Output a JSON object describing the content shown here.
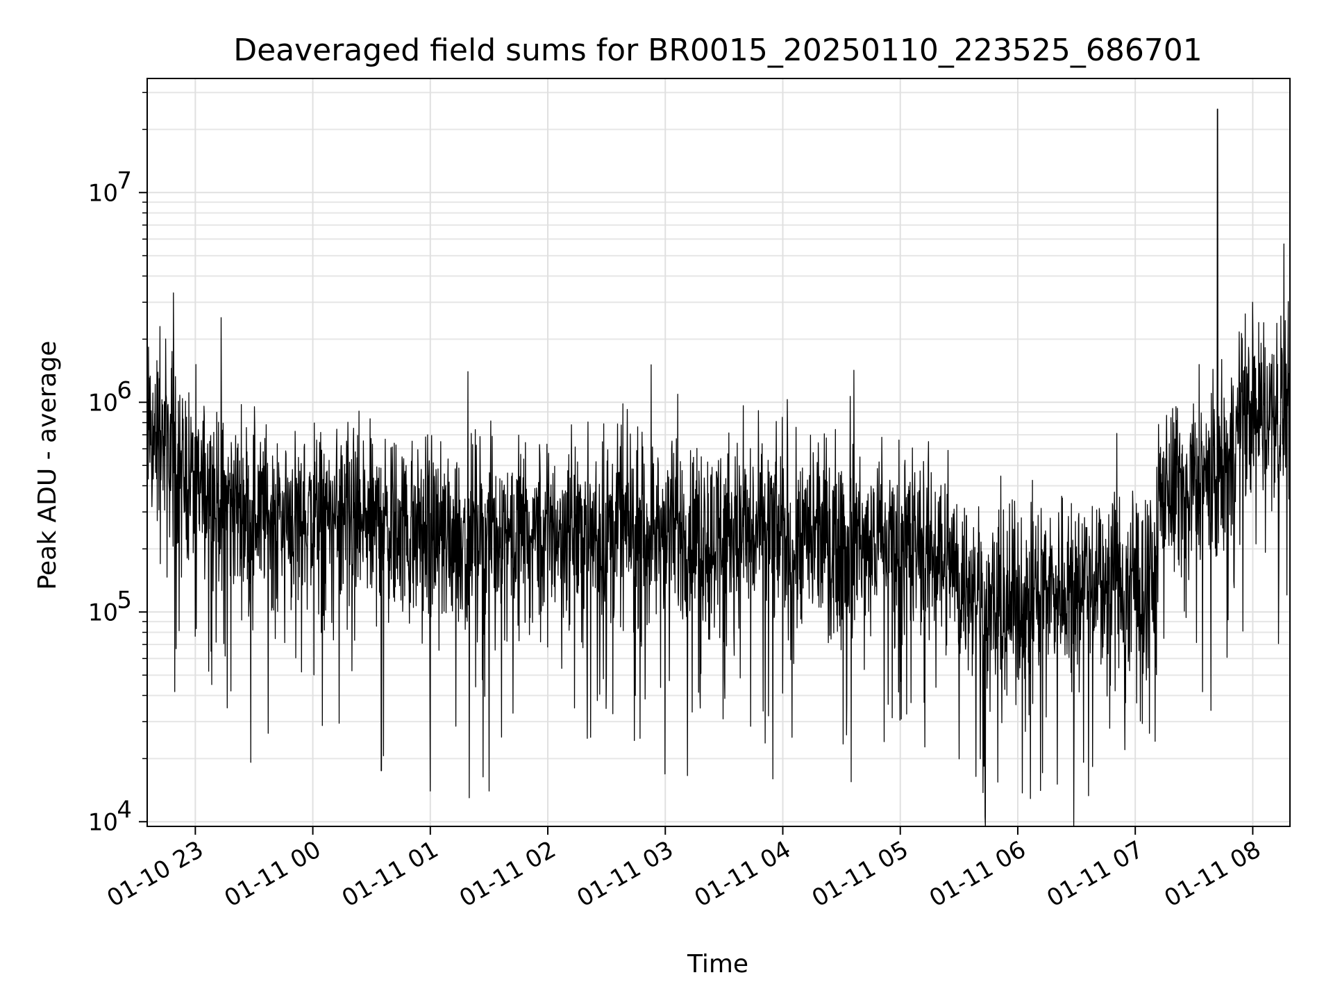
{
  "chart_data": {
    "type": "line",
    "title": "Deaveraged field sums for BR0015_20250110_223525_686701",
    "xlabel": "Time",
    "ylabel": "Peak ADU - average",
    "x_axis": {
      "type": "time",
      "range": [
        "2025-01-10 22:35:25",
        "2025-01-11 08:19:00"
      ],
      "ticks": [
        {
          "value": "2025-01-10 23:00",
          "label": "01-10 23"
        },
        {
          "value": "2025-01-11 00:00",
          "label": "01-11 00"
        },
        {
          "value": "2025-01-11 01:00",
          "label": "01-11 01"
        },
        {
          "value": "2025-01-11 02:00",
          "label": "01-11 02"
        },
        {
          "value": "2025-01-11 03:00",
          "label": "01-11 03"
        },
        {
          "value": "2025-01-11 04:00",
          "label": "01-11 04"
        },
        {
          "value": "2025-01-11 05:00",
          "label": "01-11 05"
        },
        {
          "value": "2025-01-11 06:00",
          "label": "01-11 06"
        },
        {
          "value": "2025-01-11 07:00",
          "label": "01-11 07"
        },
        {
          "value": "2025-01-11 08:00",
          "label": "01-11 08"
        }
      ]
    },
    "y_axis": {
      "scale": "log",
      "range": [
        9500,
        35000000
      ],
      "ticks": [
        {
          "value": 10000,
          "label": "10",
          "exp": "4"
        },
        {
          "value": 100000,
          "label": "10",
          "exp": "5"
        },
        {
          "value": 1000000,
          "label": "10",
          "exp": "6"
        },
        {
          "value": 10000000,
          "label": "10",
          "exp": "7"
        }
      ]
    },
    "grid": true,
    "line_color": "#000000",
    "series": [
      {
        "x": [
          "2025-01-10 22:35",
          "2025-01-10 22:45",
          "2025-01-10 23:00",
          "2025-01-10 23:30",
          "2025-01-11 00:00",
          "2025-01-11 01:00",
          "2025-01-11 02:00",
          "2025-01-11 03:00",
          "2025-01-11 04:00",
          "2025-01-11 05:00",
          "2025-01-11 05:20",
          "2025-01-11 05:45",
          "2025-01-11 06:00",
          "2025-01-11 06:30",
          "2025-01-11 07:00",
          "2025-01-11 07:10",
          "2025-01-11 07:12",
          "2025-01-11 07:30",
          "2025-01-11 07:45",
          "2025-01-11 07:55",
          "2025-01-11 08:19"
        ],
        "values": [
          700000,
          650000,
          400000,
          300000,
          280000,
          240000,
          250000,
          240000,
          230000,
          220000,
          200000,
          100000,
          110000,
          150000,
          130000,
          140000,
          380000,
          400000,
          450000,
          850000,
          950000
        ],
        "spikes": [
          {
            "x": "2025-01-11 07:42",
            "value": 25000000
          },
          {
            "x": "2025-01-11 08:00",
            "value": 3000000
          },
          {
            "x": "2025-01-10 22:42",
            "value": 2300000
          },
          {
            "x": "2025-01-11 01:00",
            "value": 14000
          },
          {
            "x": "2025-01-11 01:30",
            "value": 14000
          },
          {
            "x": "2025-01-11 04:35",
            "value": 15500
          },
          {
            "x": "2025-01-11 00:35",
            "value": 17500
          },
          {
            "x": "2025-01-11 03:55",
            "value": 16000
          }
        ]
      }
    ]
  }
}
